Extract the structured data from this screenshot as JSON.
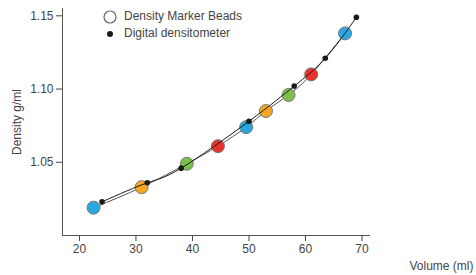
{
  "chart_data": {
    "type": "line",
    "x_label": "Volume (ml)",
    "y_label": "Density g/ml",
    "xlim": [
      17,
      71.5
    ],
    "xticks": [
      20,
      30,
      40,
      50,
      60,
      70
    ],
    "ylim": [
      1.0,
      1.155
    ],
    "yticks": [
      1.05,
      {
        "value": 1.1,
        "label": "1.10"
      },
      1.15
    ],
    "legend": "top-left",
    "series": [
      {
        "name": "Density Marker Beads",
        "type": "line",
        "marker": "circle",
        "color": "#555555",
        "colors": [
          "#29a8e0",
          "#f5a623",
          "#7cbf4a",
          "#e8332a",
          "#29a8e0",
          "#f5a623",
          "#7cbf4a",
          "#e8332a",
          "#29a8e0"
        ],
        "x": [
          22.5,
          31,
          39,
          44.5,
          49.5,
          53,
          57,
          61,
          67
        ],
        "values": [
          1.019,
          1.033,
          1.049,
          1.061,
          1.074,
          1.085,
          1.096,
          1.11,
          1.138
        ]
      },
      {
        "name": "Digital densitometer",
        "type": "line",
        "marker": "dot",
        "color": "#1a1a1a",
        "x": [
          24,
          32,
          38,
          50,
          58,
          63.5,
          69
        ],
        "values": [
          1.023,
          1.036,
          1.046,
          1.078,
          1.102,
          1.121,
          1.149
        ]
      }
    ]
  }
}
